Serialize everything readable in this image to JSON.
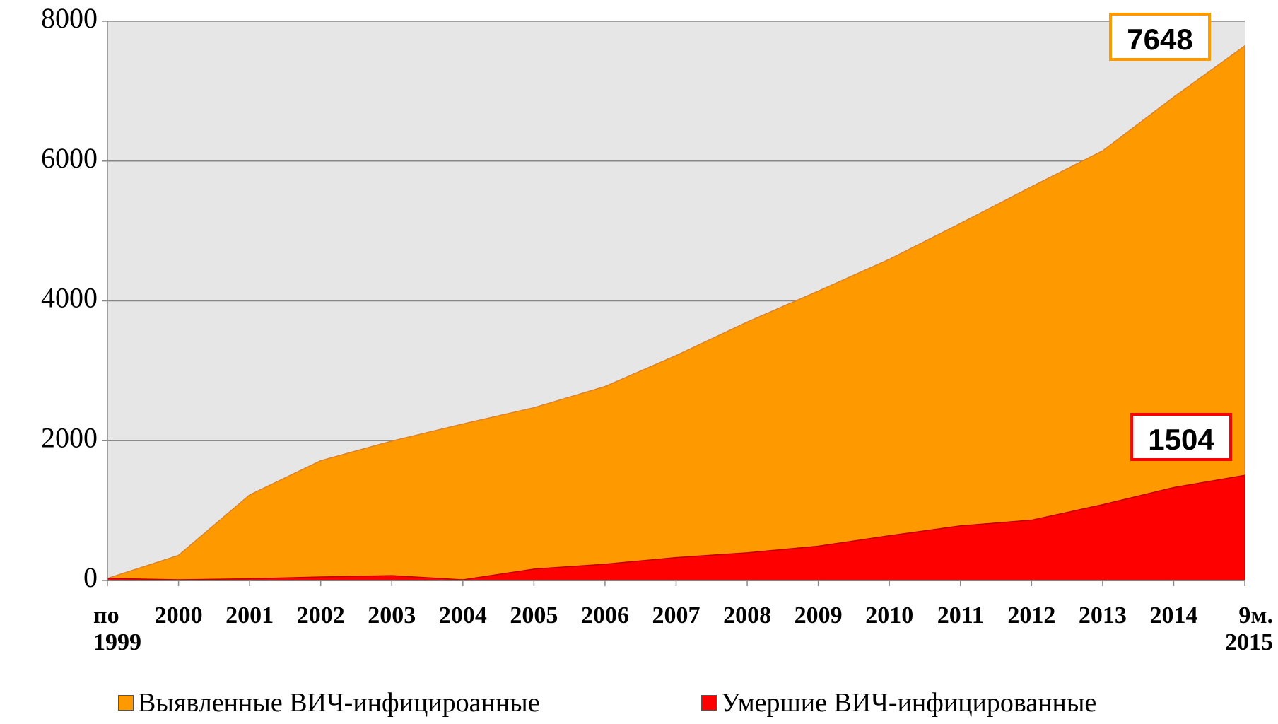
{
  "chart_data": {
    "type": "area",
    "categories": [
      "по\n1999",
      "2000",
      "2001",
      "2002",
      "2003",
      "2004",
      "2005",
      "2006",
      "2007",
      "2008",
      "2009",
      "2010",
      "2011",
      "2012",
      "2013",
      "2014",
      "9м.\n2015"
    ],
    "series": [
      {
        "name": "Выявленные ВИЧ-инфицироанные",
        "color": "#ff9900",
        "values": [
          30,
          360,
          1224,
          1714,
          1994,
          2239,
          2472,
          2775,
          3218,
          3697,
          4140,
          4595,
          5108,
          5633,
          6146,
          6915,
          7648
        ]
      },
      {
        "name": "Умершие ВИЧ-инфицированные",
        "color": "#ff0000",
        "values": [
          30,
          10,
          25,
          50,
          70,
          10,
          163,
          233,
          327,
          396,
          490,
          641,
          781,
          863,
          1085,
          1330,
          1504
        ]
      }
    ],
    "ylim": [
      0,
      8000
    ],
    "yticks": [
      0,
      2000,
      4000,
      6000,
      8000
    ],
    "grid": true,
    "legend": "bottom"
  }
}
